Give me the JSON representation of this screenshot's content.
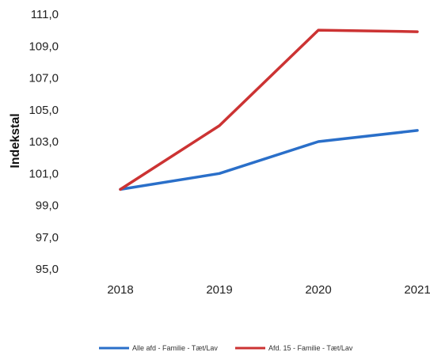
{
  "chart_data": {
    "type": "line",
    "title": "",
    "xlabel": "",
    "ylabel": "Indekstal",
    "categories": [
      "2018",
      "2019",
      "2020",
      "2021"
    ],
    "y_ticks": [
      "95,0",
      "97,0",
      "99,0",
      "101,0",
      "103,0",
      "105,0",
      "107,0",
      "109,0",
      "111,0"
    ],
    "ylim": [
      95,
      111
    ],
    "grid": false,
    "legend_position": "bottom",
    "series": [
      {
        "name": "Alle afd - Familie - Tæt/Lav",
        "color": "#2a6fc9",
        "values": [
          100.0,
          101.0,
          103.0,
          103.7
        ]
      },
      {
        "name": "Afd. 15 - Familie - Tæt/Lav",
        "color": "#cc3333",
        "values": [
          100.0,
          104.0,
          110.0,
          109.9
        ]
      }
    ]
  }
}
